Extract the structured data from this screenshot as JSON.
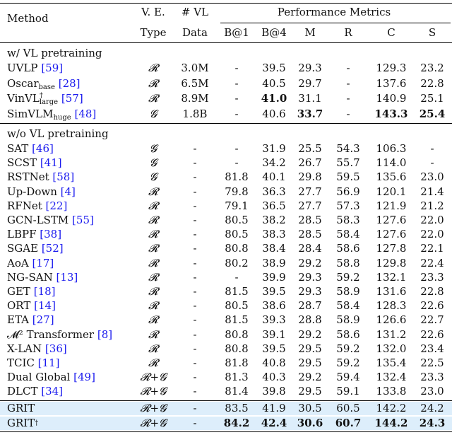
{
  "header": {
    "method": "Method",
    "ve_top": "V. E.",
    "ve_bottom": "Type",
    "vl_top": "# VL",
    "vl_bottom": "Data",
    "perf": "Performance Metrics",
    "metrics": [
      "B@1",
      "B@4",
      "M",
      "R",
      "C",
      "S"
    ]
  },
  "sections": {
    "with_vl": "w/ VL pretraining",
    "without_vl": "w/o VL pretraining"
  },
  "rows_vl": [
    {
      "name": "UVLP",
      "cite": "[59]",
      "ve": "𝓡",
      "vl": "3.0M",
      "b1": "-",
      "b4": "39.5",
      "m": "29.3",
      "r": "-",
      "c": "129.3",
      "s": "23.2"
    },
    {
      "name": "Oscar",
      "sub": "base",
      "cite": "[28]",
      "ve": "𝓡",
      "vl": "6.5M",
      "b1": "-",
      "b4": "40.5",
      "m": "29.7",
      "r": "-",
      "c": "137.6",
      "s": "22.8"
    },
    {
      "name": "VinVL",
      "sup": "†",
      "sub": "large",
      "cite": "[57]",
      "ve": "𝓡",
      "vl": "8.9M",
      "b1": "-",
      "b4": "41.0",
      "m": "31.1",
      "r": "-",
      "c": "140.9",
      "s": "25.1"
    },
    {
      "name": "SimVLM",
      "sub": "huge",
      "cite": "[48]",
      "ve": "𝓖",
      "vl": "1.8B",
      "b1": "-",
      "b4": "40.6",
      "m": "33.7",
      "r": "-",
      "c": "143.3",
      "s": "25.4"
    }
  ],
  "rows_novl": [
    {
      "name": "SAT",
      "cite": "[46]",
      "ve": "𝓖",
      "vl": "-",
      "b1": "-",
      "b4": "31.9",
      "m": "25.5",
      "r": "54.3",
      "c": "106.3",
      "s": "-"
    },
    {
      "name": "SCST",
      "cite": "[41]",
      "ve": "𝓖",
      "vl": "-",
      "b1": "-",
      "b4": "34.2",
      "m": "26.7",
      "r": "55.7",
      "c": "114.0",
      "s": "-"
    },
    {
      "name": "RSTNet",
      "cite": "[58]",
      "ve": "𝓖",
      "vl": "-",
      "b1": "81.8",
      "b4": "40.1",
      "m": "29.8",
      "r": "59.5",
      "c": "135.6",
      "s": "23.0"
    },
    {
      "name": "Up-Down",
      "cite": "[4]",
      "ve": "𝓡",
      "vl": "-",
      "b1": "79.8",
      "b4": "36.3",
      "m": "27.7",
      "r": "56.9",
      "c": "120.1",
      "s": "21.4"
    },
    {
      "name": "RFNet",
      "cite": "[22]",
      "ve": "𝓡",
      "vl": "-",
      "b1": "79.1",
      "b4": "36.5",
      "m": "27.7",
      "r": "57.3",
      "c": "121.9",
      "s": "21.2"
    },
    {
      "name": "GCN-LSTM",
      "cite": "[55]",
      "ve": "𝓡",
      "vl": "-",
      "b1": "80.5",
      "b4": "38.2",
      "m": "28.5",
      "r": "58.3",
      "c": "127.6",
      "s": "22.0"
    },
    {
      "name": "LBPF",
      "cite": "[38]",
      "ve": "𝓡",
      "vl": "-",
      "b1": "80.5",
      "b4": "38.3",
      "m": "28.5",
      "r": "58.4",
      "c": "127.6",
      "s": "22.0"
    },
    {
      "name": "SGAE",
      "cite": "[52]",
      "ve": "𝓡",
      "vl": "-",
      "b1": "80.8",
      "b4": "38.4",
      "m": "28.4",
      "r": "58.6",
      "c": "127.8",
      "s": "22.1"
    },
    {
      "name": "AoA",
      "cite": "[17]",
      "ve": "𝓡",
      "vl": "-",
      "b1": "80.2",
      "b4": "38.9",
      "m": "29.2",
      "r": "58.8",
      "c": "129.8",
      "s": "22.4"
    },
    {
      "name": "NG-SAN",
      "cite": "[13]",
      "ve": "𝓡",
      "vl": "-",
      "b1": "-",
      "b4": "39.9",
      "m": "29.3",
      "r": "59.2",
      "c": "132.1",
      "s": "23.3"
    },
    {
      "name": "GET",
      "cite": "[18]",
      "ve": "𝓡",
      "vl": "-",
      "b1": "81.5",
      "b4": "39.5",
      "m": "29.3",
      "r": "58.9",
      "c": "131.6",
      "s": "22.8"
    },
    {
      "name": "ORT",
      "cite": "[14]",
      "ve": "𝓡",
      "vl": "-",
      "b1": "80.5",
      "b4": "38.6",
      "m": "28.7",
      "r": "58.4",
      "c": "128.3",
      "s": "22.6"
    },
    {
      "name": "ETA",
      "cite": "[27]",
      "ve": "𝓡",
      "vl": "-",
      "b1": "81.5",
      "b4": "39.3",
      "m": "28.8",
      "r": "58.9",
      "c": "126.6",
      "s": "22.7"
    },
    {
      "name": "𝓜² Transformer",
      "cite": "[8]",
      "ve": "𝓡",
      "vl": "-",
      "b1": "80.8",
      "b4": "39.1",
      "m": "29.2",
      "r": "58.6",
      "c": "131.2",
      "s": "22.6"
    },
    {
      "name": "X-LAN",
      "cite": "[36]",
      "ve": "𝓡",
      "vl": "-",
      "b1": "80.8",
      "b4": "39.5",
      "m": "29.5",
      "r": "59.2",
      "c": "132.0",
      "s": "23.4"
    },
    {
      "name": "TCIC",
      "cite": "[11]",
      "ve": "𝓡",
      "vl": "-",
      "b1": "81.8",
      "b4": "40.8",
      "m": "29.5",
      "r": "59.2",
      "c": "135.4",
      "s": "22.5"
    },
    {
      "name": "Dual Global",
      "cite": "[49]",
      "ve": "𝓡+𝓖",
      "vl": "-",
      "b1": "81.3",
      "b4": "40.3",
      "m": "29.2",
      "r": "59.4",
      "c": "132.4",
      "s": "23.3"
    },
    {
      "name": "DLCT",
      "cite": "[34]",
      "ve": "𝓡+𝓖",
      "vl": "-",
      "b1": "81.4",
      "b4": "39.8",
      "m": "29.5",
      "r": "59.1",
      "c": "133.8",
      "s": "23.0"
    }
  ],
  "rows_grit": [
    {
      "name": "GRIT",
      "ve": "𝓡+𝓖",
      "vl": "-",
      "b1": "83.5",
      "b4": "41.9",
      "m": "30.5",
      "r": "60.5",
      "c": "142.2",
      "s": "24.2"
    },
    {
      "name": "GRIT",
      "sup": "†",
      "ve": "𝓡+𝓖",
      "vl": "-",
      "b1": "84.2",
      "b4": "42.4",
      "m": "30.6",
      "r": "60.7",
      "c": "144.2",
      "s": "24.3"
    }
  ],
  "bold_cells": {
    "rows_vl": {
      "2": [
        "b4"
      ],
      "3": [
        "m",
        "c",
        "s"
      ]
    },
    "rows_grit": {
      "1": [
        "b1",
        "b4",
        "m",
        "r",
        "c",
        "s"
      ]
    }
  },
  "colors": {
    "citation": "#1a1aee",
    "highlight": "#ddeefb"
  }
}
